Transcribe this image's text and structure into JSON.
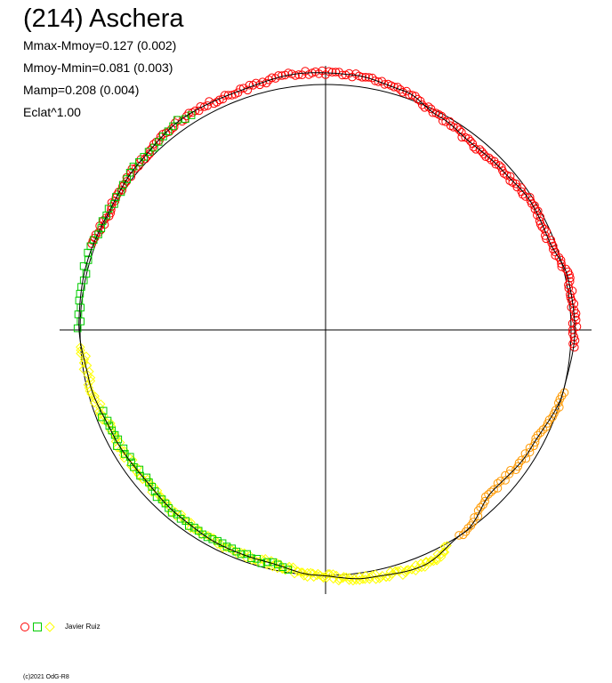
{
  "chart_data": {
    "type": "scatter",
    "title": "(214) Aschera",
    "stats": [
      "Mmax-Mmoy=0.127 (0.002)",
      "Mmoy-Mmin=0.081 (0.003)",
      "Mamp=0.208 (0.004)",
      "Eclat^1.00"
    ],
    "series": [
      {
        "marker": "circle",
        "color": "#ff0000"
      },
      {
        "marker": "square",
        "color": "#00cc00"
      },
      {
        "marker": "diamond",
        "color": "#ffff00"
      },
      {
        "marker": "circle",
        "color": "#ff9900"
      }
    ],
    "reference_circle": true,
    "legend_label": "Javier Ruiz",
    "credit": "(c)2021 OdG-R8"
  }
}
